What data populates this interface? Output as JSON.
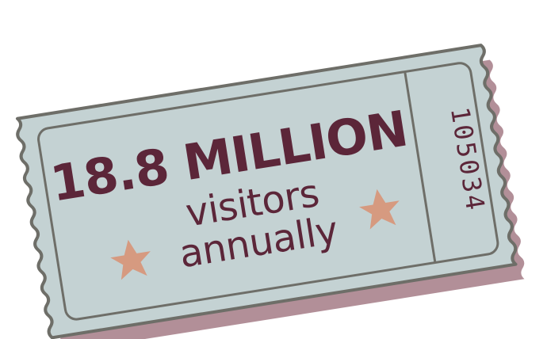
{
  "ticket": {
    "headline": "18.8 MILLION",
    "line1": "visitors",
    "line2": "annually",
    "serial": "105034"
  },
  "colors": {
    "ticket_fill": "#c4d2d3",
    "ticket_outline": "#6e6e68",
    "shadow": "#b28f98",
    "text": "#5c2639",
    "star": "#d69a80"
  },
  "icons": [
    "star-icon",
    "star-icon"
  ]
}
